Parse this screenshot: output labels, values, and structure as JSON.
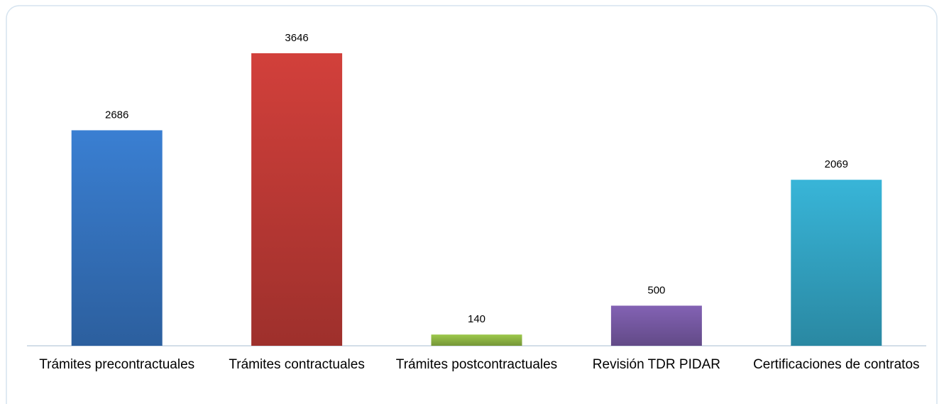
{
  "chart_data": {
    "type": "bar",
    "categories": [
      "Trámites precontractuales",
      "Trámites contractuales",
      "Trámites postcontractuales",
      "Revisión TDR PIDAR",
      "Certificaciones de contratos"
    ],
    "values": [
      2686,
      3646,
      140,
      500,
      2069
    ],
    "colors": [
      "#3a7fd2",
      "#d2403b",
      "#9cc84b",
      "#8362b4",
      "#38b5d8"
    ]
  }
}
